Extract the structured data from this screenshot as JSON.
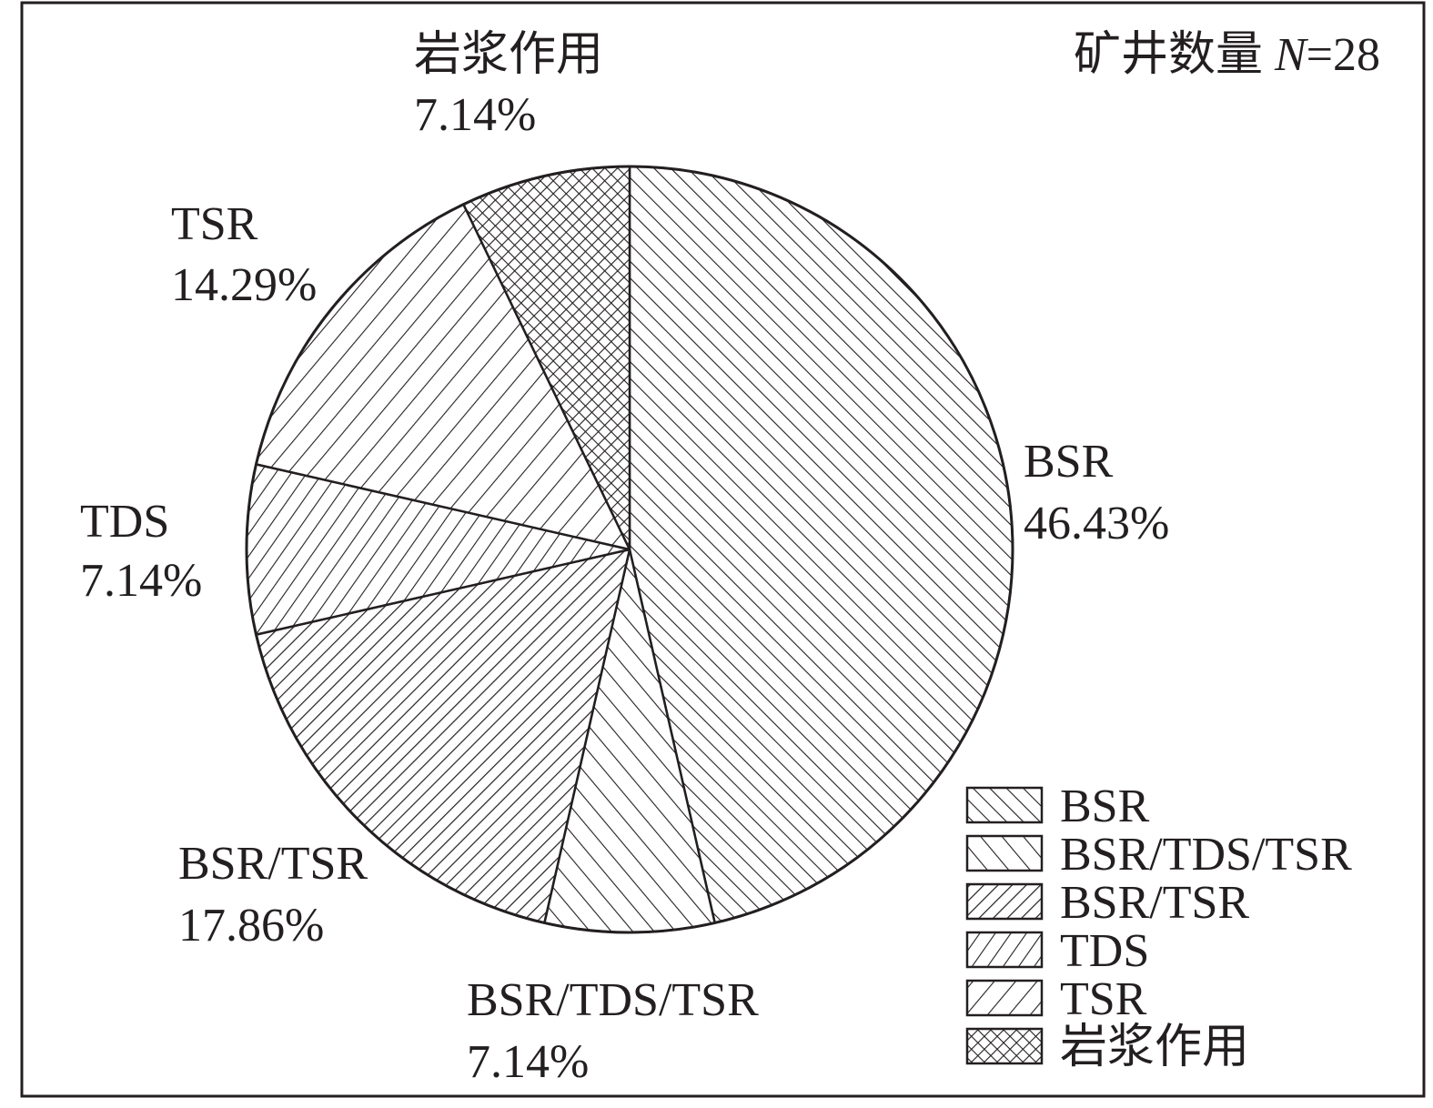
{
  "chart_data": {
    "type": "pie",
    "annotation": {
      "prefix": "矿井数量 ",
      "variable": "N",
      "suffix": "=28"
    },
    "slices": [
      {
        "label": "BSR",
        "percent_text": "46.43%",
        "value": 46.43,
        "pattern": "hatch-bsr"
      },
      {
        "label": "BSR/TDS/TSR",
        "percent_text": "7.14%",
        "value": 7.14,
        "pattern": "hatch-bsr-tds-tsr"
      },
      {
        "label": "BSR/TSR",
        "percent_text": "17.86%",
        "value": 17.86,
        "pattern": "hatch-bsr-tsr"
      },
      {
        "label": "TDS",
        "percent_text": "7.14%",
        "value": 7.14,
        "pattern": "hatch-tds"
      },
      {
        "label": "TSR",
        "percent_text": "14.29%",
        "value": 14.29,
        "pattern": "hatch-tsr"
      },
      {
        "label": "岩浆作用",
        "percent_text": "7.14%",
        "value": 7.14,
        "pattern": "hatch-magma"
      }
    ],
    "start_angle": "12 o'clock",
    "direction": "clockwise",
    "legend": {
      "placement": "bottom-right",
      "items": [
        "BSR",
        "BSR/TDS/TSR",
        "BSR/TSR",
        "TDS",
        "TSR",
        "岩浆作用"
      ]
    },
    "colors": {
      "ink": "#231f20",
      "background": "#ffffff"
    }
  }
}
